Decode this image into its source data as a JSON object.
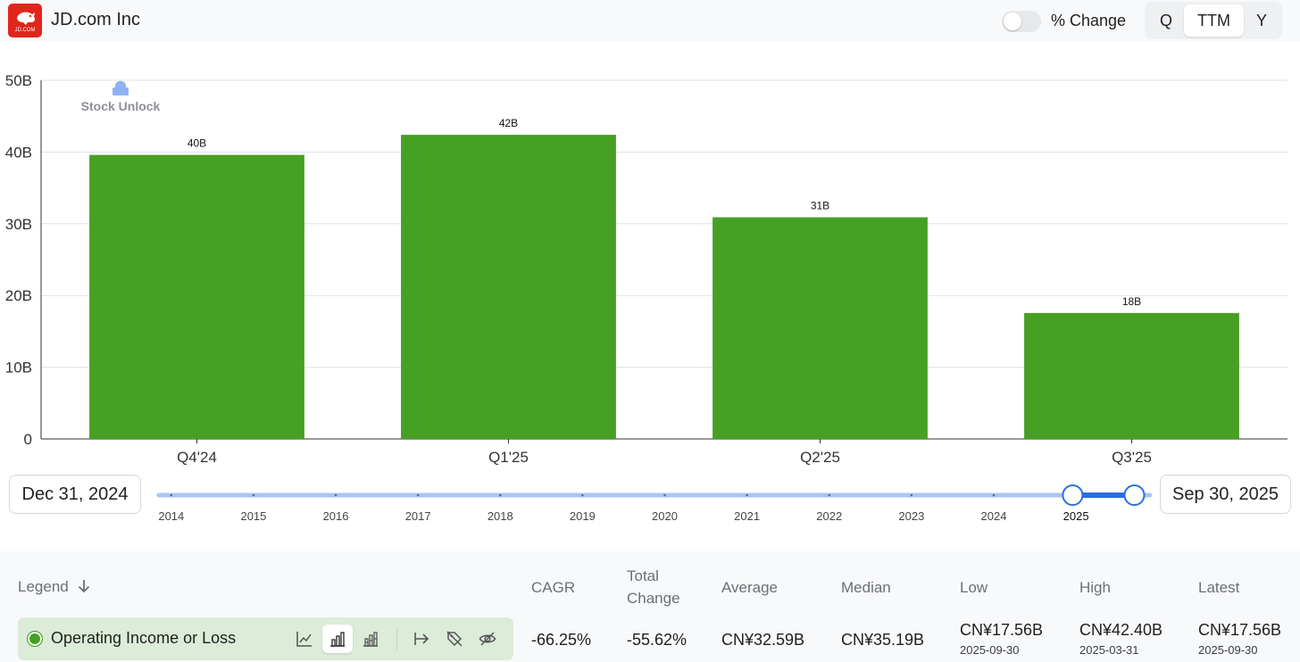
{
  "header": {
    "company_name": "JD.com Inc",
    "logo_text": "JD.COM",
    "pct_change_label": "% Change",
    "pct_change_on": false,
    "periods": [
      "Q",
      "TTM",
      "Y"
    ],
    "active_period": "TTM"
  },
  "watermark": "Stock Unlock",
  "chart_data": {
    "type": "bar",
    "categories": [
      "Q4'24",
      "Q1'25",
      "Q2'25",
      "Q3'25"
    ],
    "values": [
      39.6,
      42.4,
      30.9,
      17.56
    ],
    "data_labels": [
      "40B",
      "42B",
      "31B",
      "18B"
    ],
    "y_ticks": [
      "0",
      "10B",
      "20B",
      "30B",
      "40B",
      "50B"
    ],
    "ylim": [
      0,
      50
    ],
    "grid": true,
    "bar_color": "#46a023"
  },
  "range": {
    "start_label": "Dec 31, 2024",
    "end_label": "Sep 30, 2025",
    "years": [
      "2014",
      "2015",
      "2016",
      "2017",
      "2018",
      "2019",
      "2020",
      "2021",
      "2022",
      "2023",
      "2024",
      "2025"
    ],
    "selected_start_year": 2024.96,
    "selected_end_year": 2025.71,
    "accent": "#2a6fdb"
  },
  "stats": {
    "legend_label": "Legend",
    "legend_sort_icon": "arrow-down-icon",
    "columns": {
      "cagr": "CAGR",
      "total_change_line1": "Total",
      "total_change_line2": "Change",
      "average": "Average",
      "median": "Median",
      "low": "Low",
      "high": "High",
      "latest": "Latest"
    },
    "series": {
      "name": "Operating Income or Loss",
      "color": "#46a023",
      "tools": [
        "line-chart-icon",
        "bar-chart-icon",
        "stacked-bar-icon",
        "jump-to-end-icon",
        "tag-off-icon",
        "eye-off-icon"
      ],
      "cagr": "-66.25%",
      "total_change": "-55.62%",
      "average": "CN¥32.59B",
      "median": "CN¥35.19B",
      "low": "CN¥17.56B",
      "low_date": "2025-09-30",
      "high": "CN¥42.40B",
      "high_date": "2025-03-31",
      "latest": "CN¥17.56B",
      "latest_date": "2025-09-30"
    }
  }
}
